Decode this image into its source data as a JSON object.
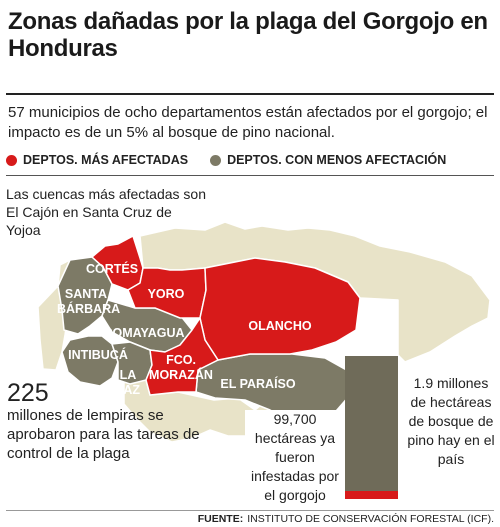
{
  "title": "Zonas dañadas por la plaga del Gorgojo en Honduras",
  "intro": "57 municipios de ocho departamentos están afectados por el gorgojo; el impacto es de un 5% al bosque de pino nacional.",
  "legend": {
    "most_affected": "DEPTOS. MÁS AFECTADAS",
    "less_affected": "DEPTOS. CON MENOS AFECTACIÓN"
  },
  "colors": {
    "most_affected": "#d71a1a",
    "less_affected": "#7d7a66",
    "unaffected": "#e8e3c8"
  },
  "basin_note": "Las cuencas más afectadas son El Cajón en Santa Cruz de Yojoa",
  "budget": {
    "amount": "225",
    "text": "millones de lempiras se aprobaron para las tareas de control de la plaga"
  },
  "departments": {
    "cortes": "CORTÉS",
    "yoro": "YORO",
    "olancho": "OLANCHO",
    "fco_morazan": "FCO. MORAZÁN",
    "santa_barbara": "SANTA BÁRBARA",
    "comayagua": "COMAYAGUA",
    "intibuca": "INTIBUCÁ",
    "la_paz": "LA PAZ",
    "el_paraiso": "EL PARAÍSO"
  },
  "forest": {
    "total_label": "1.9 millones de hectáreas de bosque de pino hay en el país",
    "infested_label": "99,700 hectáreas ya fueron infestadas por el gorgojo",
    "total_hectares": 1900000,
    "infested_hectares": 99700
  },
  "source": {
    "label": "FUENTE:",
    "text": "INSTITUTO DE CONSERVACIÓN FORESTAL (ICF)."
  }
}
